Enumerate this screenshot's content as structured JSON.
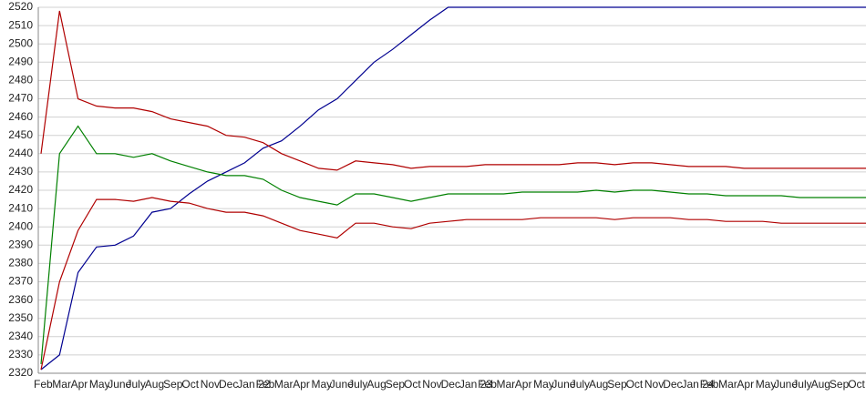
{
  "chart_data": {
    "type": "line",
    "categories": [
      "Feb",
      "Mar",
      "Apr",
      "May",
      "June",
      "July",
      "Aug",
      "Sep",
      "Oct",
      "Nov",
      "Dec",
      "Jan 22",
      "Feb",
      "Mar",
      "Apr",
      "May",
      "June",
      "July",
      "Aug",
      "Sep",
      "Oct",
      "Nov",
      "Dec",
      "Jan 23",
      "Feb",
      "Mar",
      "Apr",
      "May",
      "June",
      "July",
      "Aug",
      "Sep",
      "Oct",
      "Nov",
      "Dec",
      "Jan 24",
      "Feb",
      "Mar",
      "Apr",
      "May",
      "June",
      "July",
      "Aug",
      "Sep",
      "Oct",
      "Nov"
    ],
    "series": [
      {
        "color": "#000090",
        "values": [
          2322,
          2330,
          2375,
          2389,
          2390,
          2395,
          2408,
          2410,
          2418,
          2425,
          2430,
          2435,
          2443,
          2447,
          2455,
          2464,
          2470,
          2480,
          2490,
          2497,
          2505,
          2513,
          2520,
          2520,
          2520,
          2520,
          2520,
          2520,
          2520,
          2520,
          2520,
          2520,
          2520,
          2520,
          2520,
          2520,
          2520,
          2520,
          2520,
          2520,
          2520,
          2520,
          2520,
          2520,
          2520,
          2520
        ]
      },
      {
        "color": "#b00000",
        "values": [
          2440,
          2518,
          2470,
          2466,
          2465,
          2465,
          2463,
          2459,
          2457,
          2455,
          2450,
          2449,
          2446,
          2440,
          2436,
          2432,
          2431,
          2436,
          2435,
          2434,
          2432,
          2433,
          2433,
          2433,
          2434,
          2434,
          2434,
          2434,
          2434,
          2435,
          2435,
          2434,
          2435,
          2435,
          2434,
          2433,
          2433,
          2433,
          2432,
          2432,
          2432,
          2432,
          2432,
          2432,
          2432,
          2432
        ]
      },
      {
        "color": "#008000",
        "values": [
          2325,
          2440,
          2455,
          2440,
          2440,
          2438,
          2440,
          2436,
          2433,
          2430,
          2428,
          2428,
          2426,
          2420,
          2416,
          2414,
          2412,
          2418,
          2418,
          2416,
          2414,
          2416,
          2418,
          2418,
          2418,
          2418,
          2419,
          2419,
          2419,
          2419,
          2420,
          2419,
          2420,
          2420,
          2419,
          2418,
          2418,
          2417,
          2417,
          2417,
          2417,
          2416,
          2416,
          2416,
          2416,
          2416
        ]
      },
      {
        "color": "#b00000",
        "values": [
          2322,
          2370,
          2398,
          2415,
          2415,
          2414,
          2416,
          2414,
          2413,
          2410,
          2408,
          2408,
          2406,
          2402,
          2398,
          2396,
          2394,
          2402,
          2402,
          2400,
          2399,
          2402,
          2403,
          2404,
          2404,
          2404,
          2404,
          2405,
          2405,
          2405,
          2405,
          2404,
          2405,
          2405,
          2405,
          2404,
          2404,
          2403,
          2403,
          2403,
          2402,
          2402,
          2402,
          2402,
          2402,
          2402
        ]
      }
    ],
    "ylim": [
      2320,
      2520
    ],
    "yticks": [
      2320,
      2330,
      2340,
      2350,
      2360,
      2370,
      2380,
      2390,
      2400,
      2410,
      2420,
      2430,
      2440,
      2450,
      2460,
      2470,
      2480,
      2490,
      2500,
      2510,
      2520
    ],
    "grid": true
  }
}
